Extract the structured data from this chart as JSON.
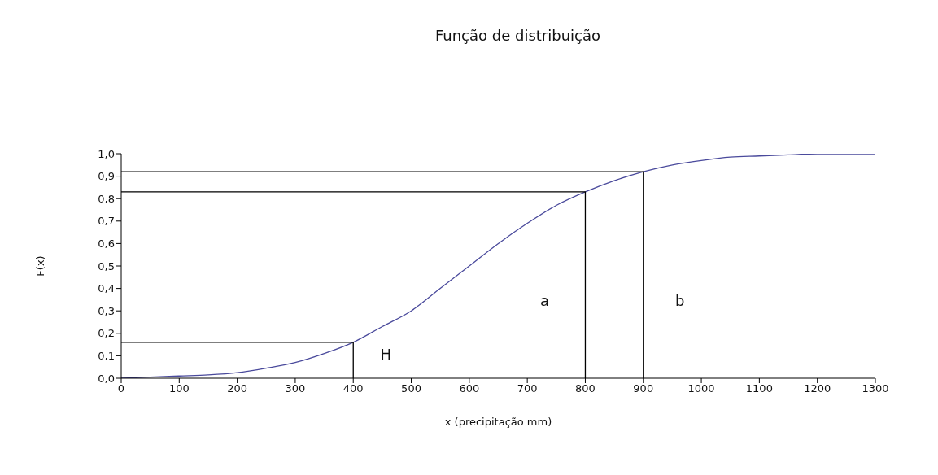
{
  "chart_data": {
    "type": "line",
    "title": "Função de distribuição",
    "xlabel": "x (precipitação mm)",
    "ylabel": "F(x)",
    "xlim": [
      0,
      1300
    ],
    "xticks": [
      0,
      100,
      200,
      300,
      400,
      500,
      600,
      700,
      800,
      900,
      1000,
      1100,
      1200,
      1300
    ],
    "ylim": [
      0,
      1
    ],
    "yticks": [
      {
        "value": 0,
        "label": "0,0"
      },
      {
        "value": 0.1,
        "label": "0,1"
      },
      {
        "value": 0.2,
        "label": "0,2"
      },
      {
        "value": 0.3,
        "label": "0,3"
      },
      {
        "value": 0.4,
        "label": "0,4"
      },
      {
        "value": 0.5,
        "label": "0,5"
      },
      {
        "value": 0.6,
        "label": "0,6"
      },
      {
        "value": 0.7,
        "label": "0,7"
      },
      {
        "value": 0.8,
        "label": "0,8"
      },
      {
        "value": 0.9,
        "label": "0,9"
      },
      {
        "value": 1,
        "label": "1,0"
      }
    ],
    "marker": "none",
    "line_style": "solid",
    "series": [
      {
        "color": "#4a4a9c",
        "x": [
          0,
          50,
          100,
          150,
          200,
          250,
          300,
          350,
          400,
          450,
          500,
          550,
          600,
          650,
          700,
          750,
          800,
          850,
          900,
          950,
          1000,
          1050,
          1100,
          1150,
          1200,
          1250,
          1300
        ],
        "values": [
          0,
          0.005,
          0.01,
          0.015,
          0.025,
          0.045,
          0.07,
          0.11,
          0.16,
          0.23,
          0.3,
          0.4,
          0.5,
          0.6,
          0.69,
          0.77,
          0.83,
          0.88,
          0.92,
          0.95,
          0.97,
          0.985,
          0.99,
          0.995,
          1,
          1,
          1
        ]
      },
      {
        "color": "#000000",
        "x": [
          0,
          400,
          400
        ],
        "values": [
          0.16,
          0.16,
          0
        ]
      },
      {
        "color": "#000000",
        "x": [
          0,
          800,
          800
        ],
        "values": [
          0.83,
          0.83,
          0
        ]
      },
      {
        "color": "#000000",
        "x": [
          0,
          900,
          900
        ],
        "values": [
          0.92,
          0.92,
          0
        ]
      }
    ],
    "annotations": [
      "H",
      "a",
      "b"
    ]
  }
}
